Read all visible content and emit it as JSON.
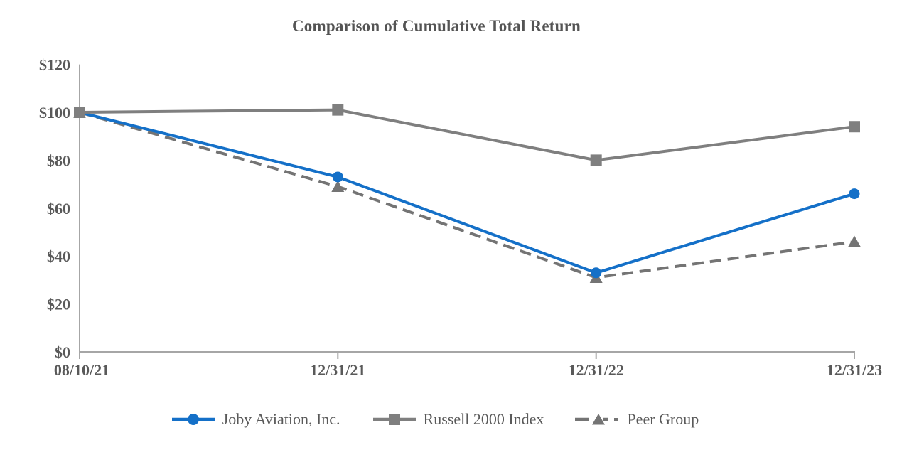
{
  "page": {
    "background_color": "#FFFFFF",
    "text_color": "#595959",
    "axis_color": "#A6A6A6"
  },
  "chart_data": {
    "type": "line",
    "title": "Comparison of Cumulative Total Return",
    "categories": [
      "08/10/21",
      "12/31/21",
      "12/31/22",
      "12/31/23"
    ],
    "series": [
      {
        "name": "Joby Aviation, Inc.",
        "values": [
          100,
          73,
          33,
          66
        ],
        "color": "#1470C8",
        "marker": "circle",
        "line_style": "solid"
      },
      {
        "name": "Russell 2000 Index",
        "values": [
          100,
          101,
          80,
          94
        ],
        "color": "#7F7F7F",
        "marker": "square",
        "line_style": "solid"
      },
      {
        "name": "Peer Group",
        "values": [
          100,
          69,
          31,
          46
        ],
        "color": "#747474",
        "marker": "triangle",
        "line_style": "dashed"
      }
    ],
    "y_axis": {
      "min": 0,
      "max": 120,
      "step": 20,
      "tick_labels": [
        "$0",
        "$20",
        "$40",
        "$60",
        "$80",
        "$100",
        "$120"
      ]
    },
    "x_axis": {
      "tick_labels": [
        "08/10/21",
        "12/31/21",
        "12/31/22",
        "12/31/23"
      ]
    },
    "grid": false,
    "legend_position": "bottom"
  }
}
